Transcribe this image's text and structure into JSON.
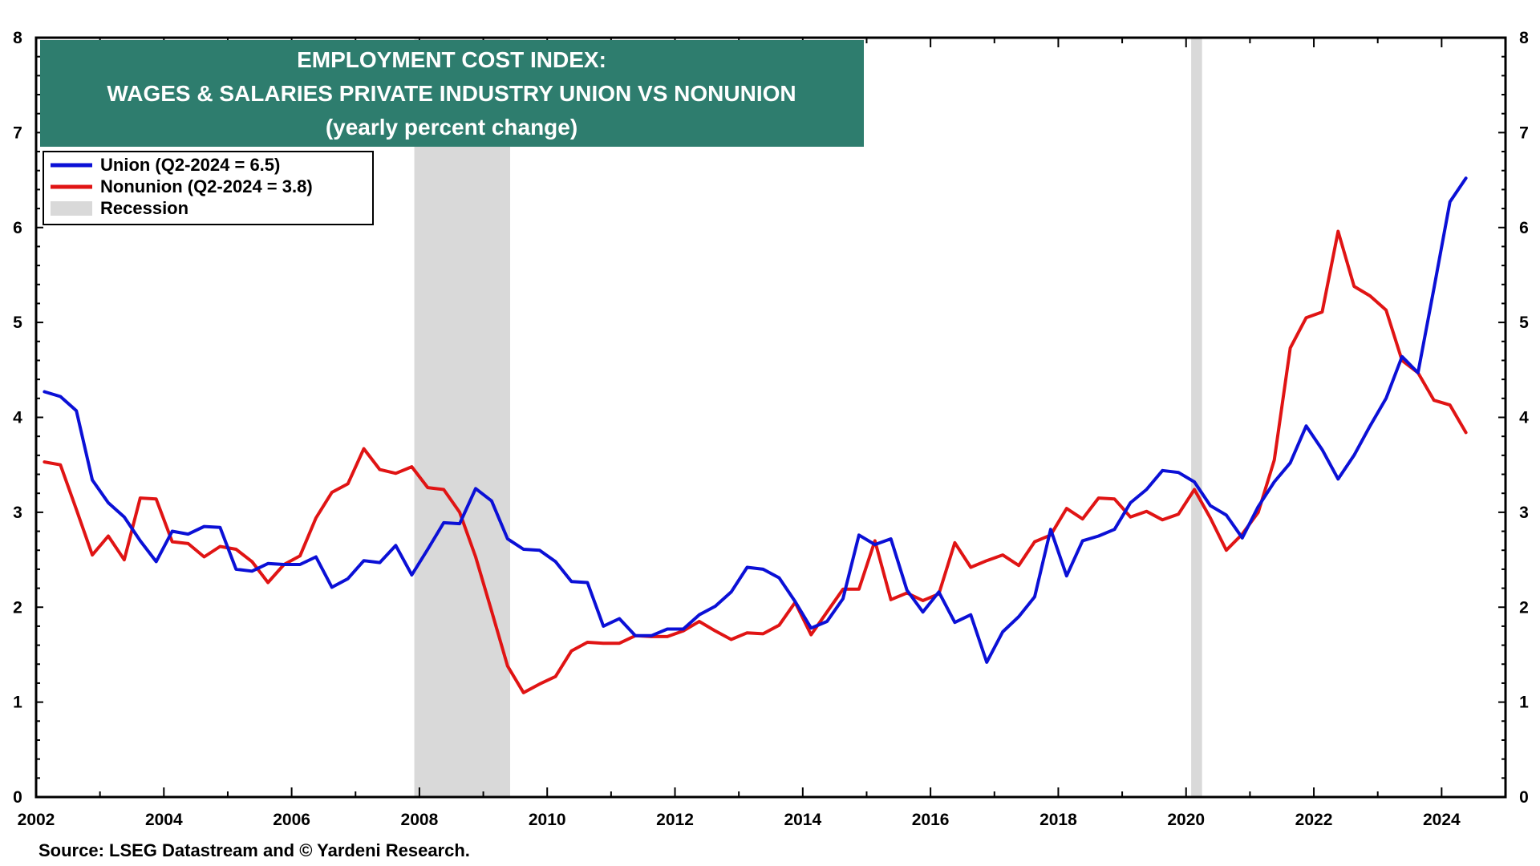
{
  "chart_data": {
    "type": "line",
    "title": "EMPLOYMENT COST INDEX:",
    "subtitle": "WAGES & SALARIES PRIVATE INDUSTRY UNION VS NONUNION",
    "subtitle2": "(yearly percent change)",
    "source": "Source: LSEG Datastream and © Yardeni Research.",
    "xlim": [
      2002.0,
      2025.0
    ],
    "ylim": [
      0,
      8
    ],
    "x_ticks": [
      "2002",
      "2004",
      "2006",
      "2008",
      "2010",
      "2012",
      "2014",
      "2016",
      "2018",
      "2020",
      "2022",
      "2024"
    ],
    "y_ticks": [
      "0",
      "1",
      "2",
      "3",
      "4",
      "5",
      "6",
      "7",
      "8"
    ],
    "colors": {
      "title_bg": "#2e7d6e",
      "union": "#0b10d6",
      "nonunion": "#e01414",
      "recession": "#d9d9d9"
    },
    "recessions": [
      {
        "start": 2007.92,
        "end": 2009.42
      },
      {
        "start": 2020.08,
        "end": 2020.25
      }
    ],
    "legend": {
      "placement": "top-left",
      "entries": [
        {
          "label": "Union (Q2-2024 = 6.5)",
          "color": "#0b10d6",
          "kind": "line"
        },
        {
          "label": "Nonunion  (Q2-2024 = 3.8)",
          "color": "#e01414",
          "kind": "line"
        },
        {
          "label": "Recession",
          "color": "#d9d9d9",
          "kind": "box"
        }
      ]
    },
    "series": [
      {
        "name": "Union",
        "color": "#0b10d6",
        "x": [
          2002.13,
          2002.38,
          2002.63,
          2002.88,
          2003.13,
          2003.38,
          2003.63,
          2003.88,
          2004.13,
          2004.38,
          2004.63,
          2004.88,
          2005.13,
          2005.38,
          2005.63,
          2005.88,
          2006.13,
          2006.38,
          2006.63,
          2006.88,
          2007.13,
          2007.38,
          2007.63,
          2007.88,
          2008.13,
          2008.38,
          2008.63,
          2008.88,
          2009.13,
          2009.38,
          2009.63,
          2009.88,
          2010.13,
          2010.38,
          2010.63,
          2010.88,
          2011.13,
          2011.38,
          2011.63,
          2011.88,
          2012.13,
          2012.38,
          2012.63,
          2012.88,
          2013.13,
          2013.38,
          2013.63,
          2013.88,
          2014.13,
          2014.38,
          2014.63,
          2014.88,
          2015.13,
          2015.38,
          2015.63,
          2015.88,
          2016.13,
          2016.38,
          2016.63,
          2016.88,
          2017.13,
          2017.38,
          2017.63,
          2017.88,
          2018.13,
          2018.38,
          2018.63,
          2018.88,
          2019.13,
          2019.38,
          2019.63,
          2019.88,
          2020.13,
          2020.38,
          2020.63,
          2020.88,
          2021.13,
          2021.38,
          2021.63,
          2021.88,
          2022.13,
          2022.38,
          2022.63,
          2022.88,
          2023.13,
          2023.38,
          2023.63,
          2023.88,
          2024.13,
          2024.38
        ],
        "y": [
          4.27,
          4.22,
          4.07,
          3.34,
          3.1,
          2.95,
          2.7,
          2.48,
          2.8,
          2.77,
          2.85,
          2.84,
          2.4,
          2.38,
          2.46,
          2.45,
          2.45,
          2.53,
          2.21,
          2.3,
          2.49,
          2.47,
          2.65,
          2.34,
          2.61,
          2.89,
          2.88,
          3.25,
          3.12,
          2.72,
          2.61,
          2.6,
          2.48,
          2.27,
          2.26,
          1.8,
          1.88,
          1.7,
          1.7,
          1.77,
          1.77,
          1.92,
          2.01,
          2.16,
          2.42,
          2.4,
          2.31,
          2.06,
          1.78,
          1.85,
          2.09,
          2.76,
          2.66,
          2.72,
          2.18,
          1.95,
          2.16,
          1.84,
          1.92,
          1.42,
          1.74,
          1.9,
          2.11,
          2.82,
          2.33,
          2.7,
          2.75,
          2.82,
          3.1,
          3.24,
          3.44,
          3.42,
          3.32,
          3.07,
          2.97,
          2.73,
          3.06,
          3.32,
          3.52,
          3.91,
          3.66,
          3.35,
          3.6,
          3.91,
          4.2,
          4.64,
          4.47,
          5.36,
          6.27,
          6.52
        ]
      },
      {
        "name": "Nonunion",
        "color": "#e01414",
        "x": [
          2002.13,
          2002.38,
          2002.63,
          2002.88,
          2003.13,
          2003.38,
          2003.63,
          2003.88,
          2004.13,
          2004.38,
          2004.63,
          2004.88,
          2005.13,
          2005.38,
          2005.63,
          2005.88,
          2006.13,
          2006.38,
          2006.63,
          2006.88,
          2007.13,
          2007.38,
          2007.63,
          2007.88,
          2008.13,
          2008.38,
          2008.63,
          2008.88,
          2009.13,
          2009.38,
          2009.63,
          2009.88,
          2010.13,
          2010.38,
          2010.63,
          2010.88,
          2011.13,
          2011.38,
          2011.63,
          2011.88,
          2012.13,
          2012.38,
          2012.63,
          2012.88,
          2013.13,
          2013.38,
          2013.63,
          2013.88,
          2014.13,
          2014.38,
          2014.63,
          2014.88,
          2015.13,
          2015.38,
          2015.63,
          2015.88,
          2016.13,
          2016.38,
          2016.63,
          2016.88,
          2017.13,
          2017.38,
          2017.63,
          2017.88,
          2018.13,
          2018.38,
          2018.63,
          2018.88,
          2019.13,
          2019.38,
          2019.63,
          2019.88,
          2020.13,
          2020.38,
          2020.63,
          2020.88,
          2021.13,
          2021.38,
          2021.63,
          2021.88,
          2022.13,
          2022.38,
          2022.63,
          2022.88,
          2023.13,
          2023.38,
          2023.63,
          2023.88,
          2024.13,
          2024.38
        ],
        "y": [
          3.53,
          3.5,
          3.03,
          2.55,
          2.75,
          2.5,
          3.15,
          3.14,
          2.69,
          2.67,
          2.53,
          2.64,
          2.61,
          2.48,
          2.26,
          2.45,
          2.54,
          2.94,
          3.21,
          3.3,
          3.67,
          3.45,
          3.41,
          3.48,
          3.26,
          3.24,
          3.0,
          2.53,
          1.96,
          1.38,
          1.1,
          1.19,
          1.27,
          1.54,
          1.63,
          1.62,
          1.62,
          1.7,
          1.69,
          1.69,
          1.75,
          1.85,
          1.75,
          1.66,
          1.73,
          1.72,
          1.81,
          2.05,
          1.71,
          1.95,
          2.19,
          2.19,
          2.7,
          2.08,
          2.15,
          2.07,
          2.14,
          2.68,
          2.42,
          2.49,
          2.55,
          2.44,
          2.69,
          2.76,
          3.04,
          2.93,
          3.15,
          3.14,
          2.95,
          3.01,
          2.92,
          2.98,
          3.24,
          2.94,
          2.6,
          2.77,
          3.0,
          3.55,
          4.73,
          5.05,
          5.11,
          5.96,
          5.38,
          5.28,
          5.13,
          4.6,
          4.47,
          4.18,
          4.13,
          3.84
        ]
      }
    ]
  }
}
